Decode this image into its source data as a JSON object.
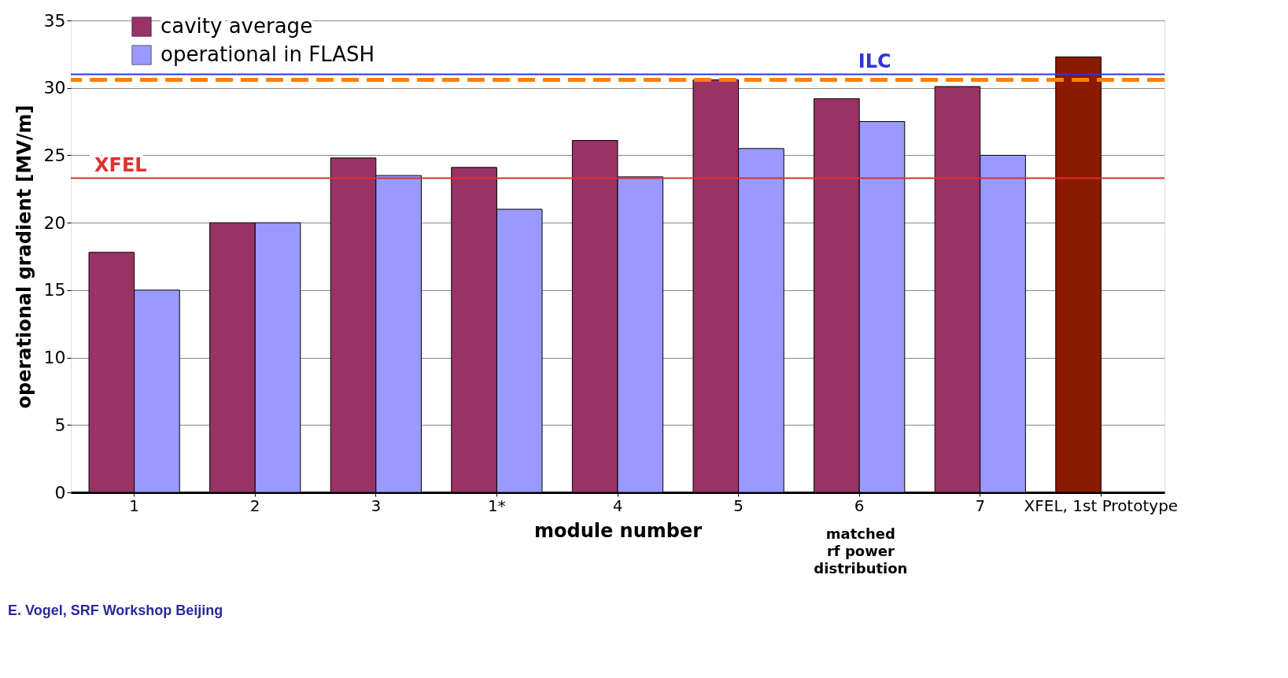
{
  "chart_data": {
    "type": "bar",
    "xlabel": "module number",
    "ylabel": "operational gradient [MV/m]",
    "categories": [
      "1",
      "2",
      "3",
      "1*",
      "4",
      "5",
      "6",
      "7",
      "XFEL, 1st Prototype"
    ],
    "series": [
      {
        "name": "cavity average",
        "color": "#993366",
        "colors": [
          "#993366",
          "#993366",
          "#993366",
          "#993366",
          "#993366",
          "#993366",
          "#993366",
          "#993366",
          "#8b1a00"
        ],
        "values": [
          17.8,
          20.0,
          24.8,
          24.1,
          26.1,
          30.6,
          29.2,
          30.1,
          32.3
        ]
      },
      {
        "name": "operational in FLASH",
        "color": "#9999ff",
        "values": [
          15.0,
          20.0,
          23.5,
          21.0,
          23.4,
          25.5,
          27.5,
          25.0,
          null
        ]
      }
    ],
    "ylim": [
      0,
      35
    ],
    "yticks": [
      0,
      5,
      10,
      15,
      20,
      25,
      30,
      35
    ],
    "grid": "y",
    "legend": "top left",
    "ref_lines": [
      {
        "axis": "y",
        "value": 23.3,
        "label": "XFEL",
        "color": "#e03030"
      },
      {
        "axis": "y",
        "value": 31,
        "label": "ILC",
        "color": "#3333dd"
      },
      {
        "axis": "y",
        "value": 30.6,
        "color": "#ff7f0e",
        "line_style": "dashed"
      }
    ],
    "annotations": [
      "matched\nrf power\ndistribution",
      "E. Vogel, SRF Workshop Beijing"
    ]
  }
}
